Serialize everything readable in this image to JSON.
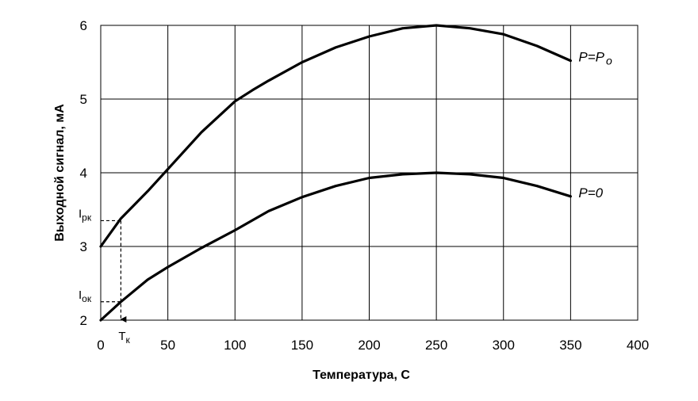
{
  "chart_data": {
    "type": "line",
    "xlabel": "Температура, С",
    "ylabel": "Выходной сигнал, мА",
    "xlim": [
      0,
      400
    ],
    "ylim": [
      2,
      6
    ],
    "xticks": [
      "0",
      "50",
      "100",
      "150",
      "200",
      "250",
      "300",
      "350",
      "400"
    ],
    "yticks": [
      "2",
      "3",
      "4",
      "5",
      "6"
    ],
    "grid": true,
    "series": [
      {
        "name": "P=P",
        "name_subscript": "o",
        "x": [
          0,
          15,
          35,
          50,
          75,
          100,
          113,
          125,
          150,
          175,
          200,
          225,
          250,
          275,
          300,
          325,
          350
        ],
        "values": [
          3.0,
          3.38,
          3.75,
          4.05,
          4.55,
          4.97,
          5.12,
          5.25,
          5.5,
          5.7,
          5.85,
          5.96,
          6.0,
          5.96,
          5.88,
          5.72,
          5.52
        ]
      },
      {
        "name": "P=0",
        "x": [
          0,
          15,
          35,
          50,
          75,
          100,
          125,
          150,
          175,
          200,
          225,
          250,
          275,
          300,
          325,
          350
        ],
        "values": [
          2.0,
          2.25,
          2.55,
          2.72,
          2.98,
          3.22,
          3.48,
          3.67,
          3.82,
          3.93,
          3.98,
          4.0,
          3.98,
          3.93,
          3.82,
          3.68
        ]
      }
    ],
    "annotations": {
      "Ipk": {
        "main": "I",
        "sub": "рк",
        "y": 3.35
      },
      "Iok": {
        "main": "I",
        "sub": "ок",
        "y": 2.25
      },
      "Tk": {
        "main": "T",
        "sub": "к",
        "x": 15
      }
    }
  }
}
